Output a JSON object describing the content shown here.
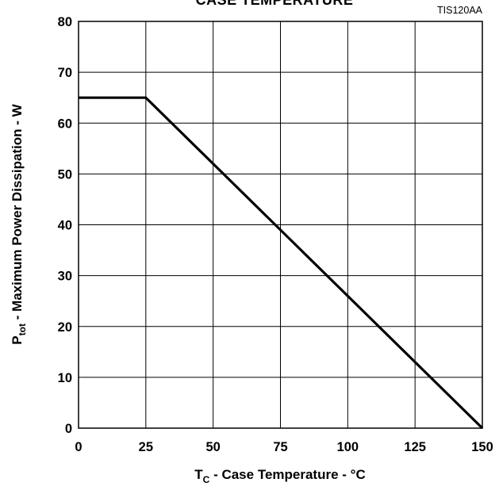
{
  "chart_data": {
    "type": "line",
    "title": "CASE TEMPERATURE",
    "figure_code": "TIS120AA",
    "xlabel": {
      "main": "T",
      "sub": "C",
      "rest": " - Case Temperature - °C"
    },
    "ylabel": {
      "main": "P",
      "sub": "tot",
      "rest": " - Maximum Power Dissipation - W"
    },
    "xlim": [
      0,
      150
    ],
    "ylim": [
      0,
      80
    ],
    "x_ticks": [
      0,
      25,
      50,
      75,
      100,
      125,
      150
    ],
    "y_ticks": [
      0,
      10,
      20,
      30,
      40,
      50,
      60,
      70,
      80
    ],
    "grid": true,
    "series": [
      {
        "x": [
          0,
          25,
          150
        ],
        "y": [
          65,
          65,
          0
        ]
      }
    ]
  }
}
